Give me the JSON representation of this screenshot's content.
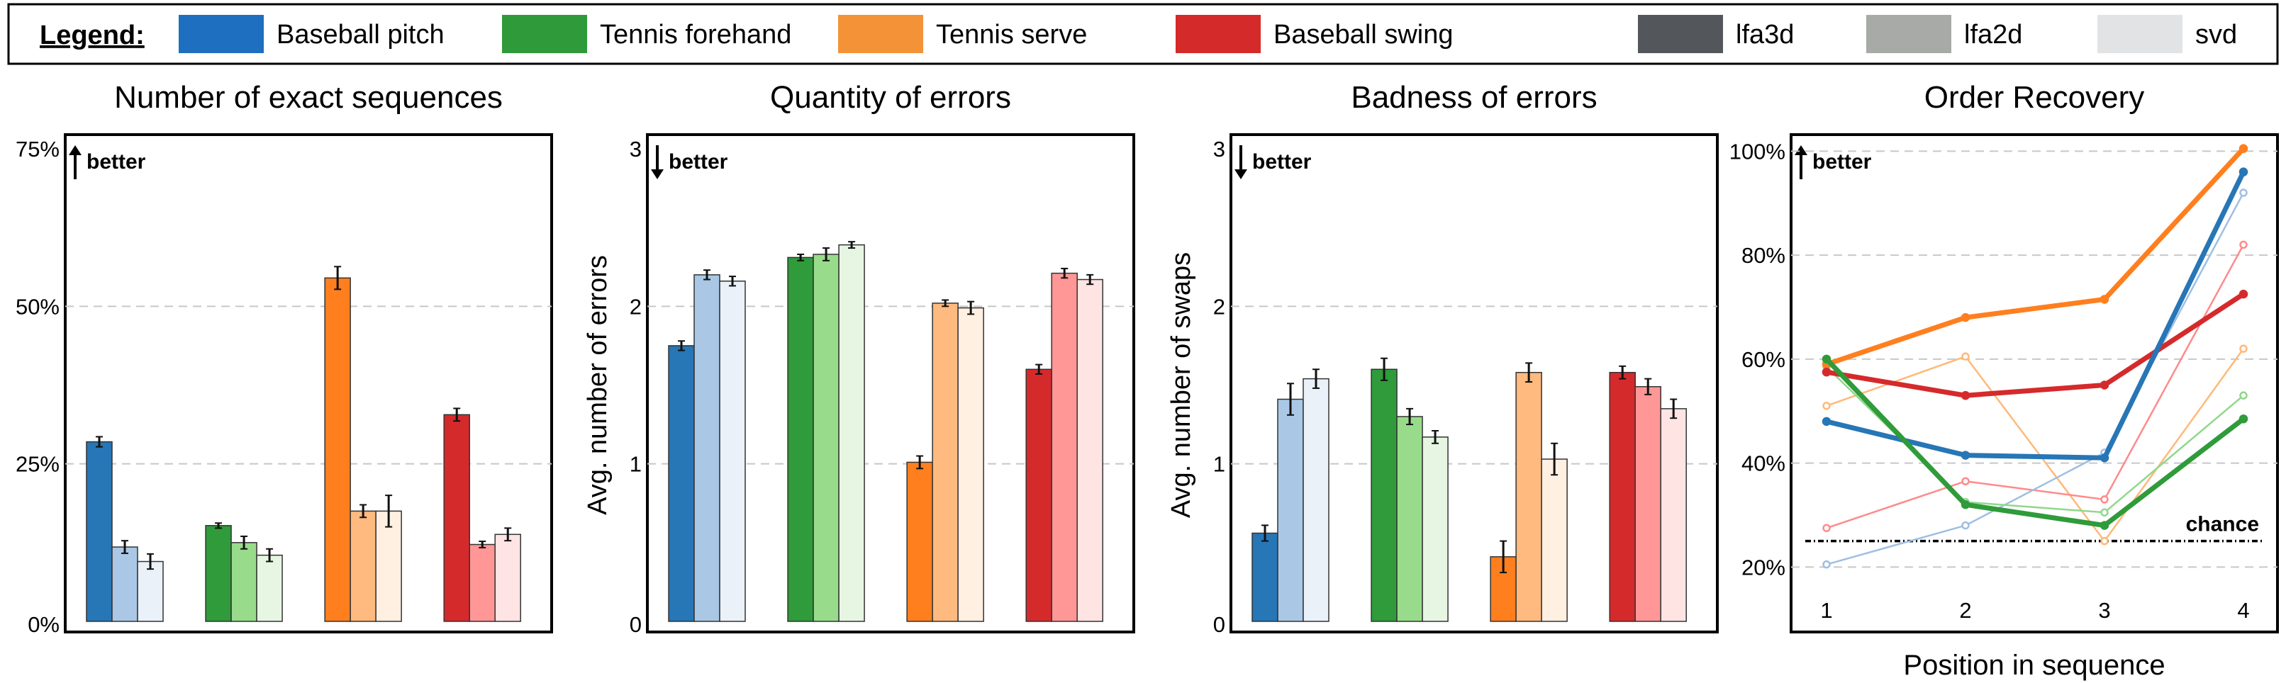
{
  "legend": {
    "title": "Legend:",
    "entries": [
      {
        "label": "Baseball pitch",
        "color": "#1f6fc0"
      },
      {
        "label": "Tennis forehand",
        "color": "#2e9a3a"
      },
      {
        "label": "Tennis serve",
        "color": "#f39237"
      },
      {
        "label": "Baseball swing",
        "color": "#d42a2a"
      },
      {
        "label": "lfa3d",
        "color": "#53565a"
      },
      {
        "label": "lfa2d",
        "color": "#a8aaa8"
      },
      {
        "label": "svd",
        "color": "#e2e3e4"
      }
    ]
  },
  "chart_data": [
    {
      "type": "bar",
      "title": "Number of exact sequences",
      "annotation": "better",
      "direction": "up",
      "ylabel": "",
      "ylim": [
        0,
        75
      ],
      "yticks": [
        "0%",
        "25%",
        "50%",
        "75%"
      ],
      "groups": [
        "Baseball pitch",
        "Tennis forehand",
        "Tennis serve",
        "Baseball swing"
      ],
      "methods": [
        "lfa3d",
        "lfa2d",
        "svd"
      ],
      "values": [
        [
          28.5,
          11.8,
          9.5
        ],
        [
          15.2,
          12.5,
          10.5
        ],
        [
          54.5,
          17.5,
          17.5
        ],
        [
          32.8,
          12.2,
          13.8
        ]
      ],
      "errors": [
        [
          0.8,
          1.0,
          1.2
        ],
        [
          0.4,
          1.0,
          1.0
        ],
        [
          1.8,
          1.0,
          2.5
        ],
        [
          1.0,
          0.5,
          1.0
        ]
      ]
    },
    {
      "type": "bar",
      "title": "Quantity of errors",
      "annotation": "better",
      "direction": "down",
      "ylabel": "Avg. number of errors",
      "ylim": [
        0,
        3
      ],
      "yticks": [
        "0",
        "1",
        "2",
        "3"
      ],
      "groups": [
        "Baseball pitch",
        "Tennis forehand",
        "Tennis serve",
        "Baseball swing"
      ],
      "methods": [
        "lfa3d",
        "lfa2d",
        "svd"
      ],
      "values": [
        [
          1.75,
          2.2,
          2.16
        ],
        [
          2.31,
          2.33,
          2.39
        ],
        [
          1.01,
          2.02,
          1.99
        ],
        [
          1.6,
          2.21,
          2.17
        ]
      ],
      "errors": [
        [
          0.03,
          0.03,
          0.03
        ],
        [
          0.02,
          0.04,
          0.02
        ],
        [
          0.04,
          0.02,
          0.04
        ],
        [
          0.03,
          0.03,
          0.03
        ]
      ]
    },
    {
      "type": "bar",
      "title": "Badness of errors",
      "annotation": "better",
      "direction": "down",
      "ylabel": "Avg. number of swaps",
      "ylim": [
        0,
        3
      ],
      "yticks": [
        "0",
        "1",
        "2",
        "3"
      ],
      "groups": [
        "Baseball pitch",
        "Tennis forehand",
        "Tennis serve",
        "Baseball swing"
      ],
      "methods": [
        "lfa3d",
        "lfa2d",
        "svd"
      ],
      "values": [
        [
          0.56,
          1.41,
          1.54
        ],
        [
          1.6,
          1.3,
          1.17
        ],
        [
          0.41,
          1.58,
          1.03
        ],
        [
          1.58,
          1.49,
          1.35
        ]
      ],
      "errors": [
        [
          0.05,
          0.1,
          0.06
        ],
        [
          0.07,
          0.05,
          0.04
        ],
        [
          0.1,
          0.06,
          0.1
        ],
        [
          0.04,
          0.05,
          0.06
        ]
      ]
    },
    {
      "type": "line",
      "title": "Order Recovery",
      "annotation": "better",
      "direction": "up",
      "xlabel": "Position in sequence",
      "x": [
        1,
        2,
        3,
        4
      ],
      "ylim": [
        15,
        101
      ],
      "yticks": [
        20,
        40,
        60,
        80,
        100
      ],
      "ytick_labels": [
        "20%",
        "40%",
        "60%",
        "80%",
        "100%"
      ],
      "chance": {
        "label": "chance",
        "value": 25
      },
      "series": [
        {
          "group": "Tennis serve",
          "method": "lfa3d",
          "values": [
            59,
            68,
            71.5,
            100.5
          ]
        },
        {
          "group": "Baseball swing",
          "method": "lfa3d",
          "values": [
            57.5,
            53,
            55,
            72.5
          ]
        },
        {
          "group": "Baseball pitch",
          "method": "lfa3d",
          "values": [
            48,
            41.5,
            41,
            96
          ]
        },
        {
          "group": "Tennis forehand",
          "method": "lfa3d",
          "values": [
            60,
            32,
            28,
            48.5
          ]
        },
        {
          "group": "Tennis serve",
          "method": "lfa2d",
          "values": [
            51,
            60.5,
            25,
            62
          ]
        },
        {
          "group": "Baseball swing",
          "method": "lfa2d",
          "values": [
            27.5,
            36.5,
            33,
            82
          ]
        },
        {
          "group": "Baseball pitch",
          "method": "lfa2d",
          "values": [
            20.5,
            28,
            42,
            92
          ]
        },
        {
          "group": "Tennis forehand",
          "method": "lfa2d",
          "values": [
            58.5,
            32.5,
            30.5,
            53
          ]
        }
      ]
    }
  ]
}
